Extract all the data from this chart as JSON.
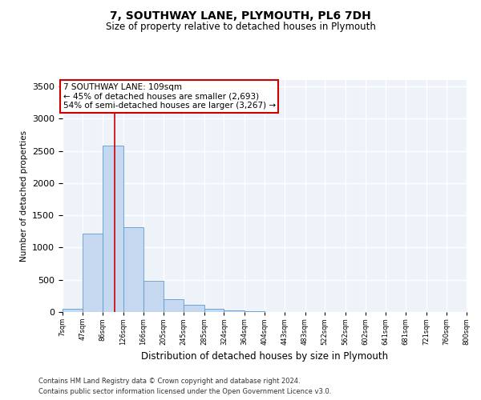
{
  "title1": "7, SOUTHWAY LANE, PLYMOUTH, PL6 7DH",
  "title2": "Size of property relative to detached houses in Plymouth",
  "xlabel": "Distribution of detached houses by size in Plymouth",
  "ylabel": "Number of detached properties",
  "footnote1": "Contains HM Land Registry data © Crown copyright and database right 2024.",
  "footnote2": "Contains public sector information licensed under the Open Government Licence v3.0.",
  "annotation_line1": "7 SOUTHWAY LANE: 109sqm",
  "annotation_line2": "← 45% of detached houses are smaller (2,693)",
  "annotation_line3": "54% of semi-detached houses are larger (3,267) →",
  "bar_edges": [
    7,
    47,
    86,
    126,
    166,
    205,
    245,
    285,
    324,
    364,
    404,
    443,
    483,
    522,
    562,
    602,
    641,
    681,
    721,
    760,
    800
  ],
  "bar_heights": [
    50,
    1220,
    2580,
    1320,
    480,
    200,
    110,
    55,
    30,
    10,
    0,
    0,
    0,
    0,
    0,
    0,
    0,
    0,
    0,
    0
  ],
  "bar_color": "#c5d8f0",
  "bar_edgecolor": "#5a9bd5",
  "property_line_x": 109,
  "property_line_color": "#cc0000",
  "annotation_box_edgecolor": "#cc0000",
  "ylim": [
    0,
    3600
  ],
  "yticks": [
    0,
    500,
    1000,
    1500,
    2000,
    2500,
    3000,
    3500
  ],
  "bg_color": "#eef2f9",
  "grid_color": "white",
  "title1_fontsize": 10,
  "title2_fontsize": 8.5,
  "ylabel_fontsize": 7.5,
  "xlabel_fontsize": 8.5,
  "ytick_fontsize": 8,
  "xtick_fontsize": 6,
  "annot_fontsize": 7.5,
  "footnote_fontsize": 6
}
